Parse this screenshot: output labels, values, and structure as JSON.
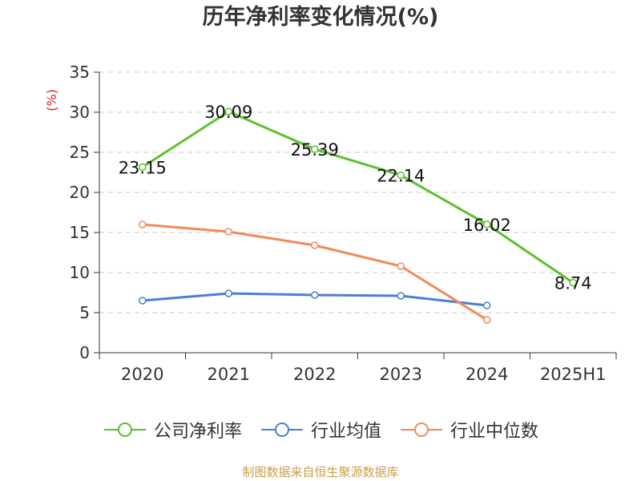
{
  "title": "历年净利率变化情况(%)",
  "source": "制图数据来自恒生聚源数据库",
  "chart_data": {
    "type": "line",
    "categories": [
      "2020",
      "2021",
      "2022",
      "2023",
      "2024",
      "2025H1"
    ],
    "ylabel": "(%)",
    "ylim": [
      0,
      35
    ],
    "yticks": [
      0,
      5,
      10,
      15,
      20,
      25,
      30,
      35
    ],
    "grid": true,
    "legend_position": "bottom",
    "series": [
      {
        "name": "公司净利率",
        "color": "#5cc12e",
        "values": [
          23.15,
          30.09,
          25.39,
          22.14,
          16.02,
          8.74
        ],
        "labels": [
          "23.15",
          "30.09",
          "25.39",
          "22.14",
          "16.02",
          "8.74"
        ]
      },
      {
        "name": "行业均值",
        "color": "#4a7fd8",
        "values": [
          6.5,
          7.4,
          7.2,
          7.1,
          5.9,
          null
        ]
      },
      {
        "name": "行业中位数",
        "color": "#f28a5a",
        "values": [
          16.0,
          15.1,
          13.4,
          10.8,
          4.1,
          null
        ]
      }
    ]
  }
}
